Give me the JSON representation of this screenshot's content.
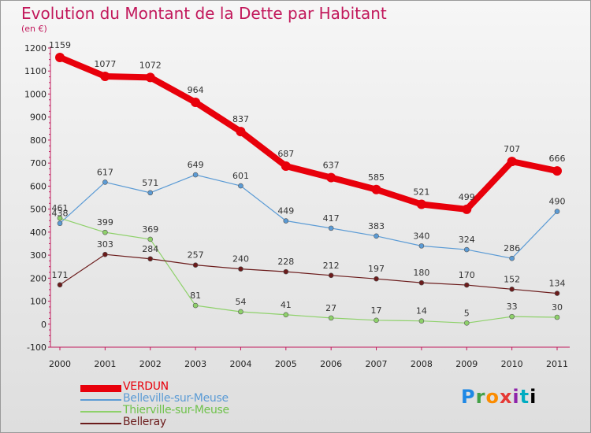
{
  "header": {
    "title": "Evolution du Montant de la Dette par Habitant",
    "unit": "(en €)"
  },
  "logo": {
    "text": "Proxiti",
    "letters": [
      "P",
      "r",
      "o",
      "x",
      "i",
      "t",
      "i"
    ]
  },
  "chart_data": {
    "type": "line",
    "title": "Evolution du Montant de la Dette par Habitant",
    "ylabel": "(en €)",
    "xlabel": "",
    "x": [
      "2000",
      "2001",
      "2002",
      "2003",
      "2004",
      "2005",
      "2006",
      "2007",
      "2008",
      "2009",
      "2010",
      "2011"
    ],
    "ylim": [
      -100,
      1200
    ],
    "yticks": [
      -100,
      0,
      100,
      200,
      300,
      400,
      500,
      600,
      700,
      800,
      900,
      1000,
      1100,
      1200
    ],
    "grid": false,
    "legend_position": "bottom-left",
    "series": [
      {
        "name": "VERDUN",
        "color": "#e8000b",
        "emphasis": true,
        "values": [
          1159,
          1077,
          1072,
          964,
          837,
          687,
          637,
          585,
          521,
          499,
          707,
          666
        ]
      },
      {
        "name": "Belleville-sur-Meuse",
        "color": "#5b9bd5",
        "emphasis": false,
        "values": [
          438,
          617,
          571,
          649,
          601,
          449,
          417,
          383,
          340,
          324,
          286,
          490
        ]
      },
      {
        "name": "Thierville-sur-Meuse",
        "color": "#8ed16a",
        "emphasis": false,
        "values": [
          461,
          399,
          369,
          81,
          54,
          41,
          27,
          17,
          14,
          5,
          33,
          30
        ]
      },
      {
        "name": "Belleray",
        "color": "#6b1b1b",
        "emphasis": false,
        "values": [
          171,
          303,
          284,
          257,
          240,
          228,
          212,
          197,
          180,
          170,
          152,
          134
        ]
      }
    ]
  }
}
